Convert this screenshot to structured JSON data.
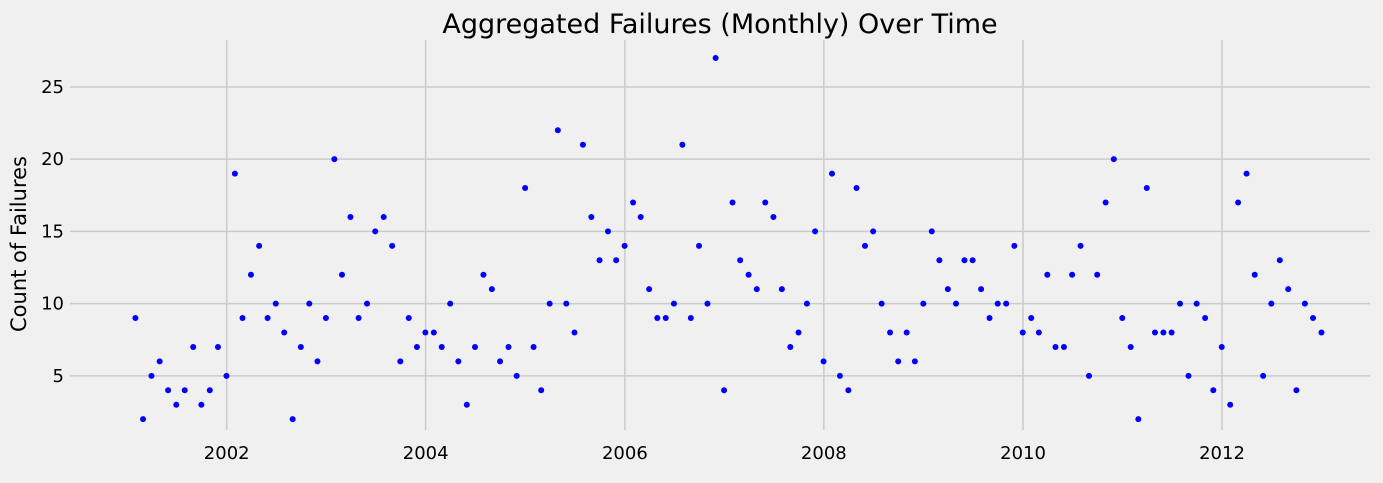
{
  "chart_data": {
    "type": "scatter",
    "title": "Aggregated Failures (Monthly) Over Time",
    "xlabel": "",
    "ylabel": "Count of Failures",
    "marker_color": "#0000ff",
    "background_color": "#f0f0f0",
    "grid_color": "#cbcbcb",
    "grid": true,
    "x_tick_labels": [
      "2002",
      "2004",
      "2006",
      "2008",
      "2010",
      "2012"
    ],
    "y_tick_labels": [
      "5",
      "10",
      "15",
      "20",
      "25"
    ],
    "xlim": [
      "2000-06-05",
      "2013-06-27"
    ],
    "ylim": [
      1.25,
      28.25
    ],
    "series": [
      {
        "x": [
          "2001-01-31",
          "2001-02-28",
          "2001-03-31",
          "2001-04-30",
          "2001-05-31",
          "2001-06-30",
          "2001-07-31",
          "2001-08-31",
          "2001-09-30",
          "2001-10-31",
          "2001-11-30",
          "2001-12-31",
          "2002-01-31",
          "2002-02-28",
          "2002-03-31",
          "2002-04-30",
          "2002-05-31",
          "2002-06-30",
          "2002-07-31",
          "2002-08-31",
          "2002-09-30",
          "2002-10-31",
          "2002-11-30",
          "2002-12-31",
          "2003-01-31",
          "2003-02-28",
          "2003-03-31",
          "2003-04-30",
          "2003-05-31",
          "2003-06-30",
          "2003-07-31",
          "2003-08-31",
          "2003-09-30",
          "2003-10-31",
          "2003-11-30",
          "2003-12-31",
          "2004-01-31",
          "2004-02-29",
          "2004-03-31",
          "2004-04-30",
          "2004-05-31",
          "2004-06-30",
          "2004-07-31",
          "2004-08-31",
          "2004-09-30",
          "2004-10-31",
          "2004-11-30",
          "2004-12-31",
          "2005-01-31",
          "2005-02-28",
          "2005-03-31",
          "2005-04-30",
          "2005-05-31",
          "2005-06-30",
          "2005-07-31",
          "2005-08-31",
          "2005-09-30",
          "2005-10-31",
          "2005-11-30",
          "2005-12-31",
          "2006-01-31",
          "2006-02-28",
          "2006-03-31",
          "2006-04-30",
          "2006-05-31",
          "2006-06-30",
          "2006-07-31",
          "2006-08-31",
          "2006-09-30",
          "2006-10-31",
          "2006-11-30",
          "2006-12-31",
          "2007-01-31",
          "2007-02-28",
          "2007-03-31",
          "2007-04-30",
          "2007-05-31",
          "2007-06-30",
          "2007-07-31",
          "2007-08-31",
          "2007-09-30",
          "2007-10-31",
          "2007-11-30",
          "2007-12-31",
          "2008-01-31",
          "2008-02-29",
          "2008-03-31",
          "2008-04-30",
          "2008-05-31",
          "2008-06-30",
          "2008-07-31",
          "2008-08-31",
          "2008-09-30",
          "2008-10-31",
          "2008-11-30",
          "2008-12-31",
          "2009-01-31",
          "2009-02-28",
          "2009-03-31",
          "2009-04-30",
          "2009-05-31",
          "2009-06-30",
          "2009-07-31",
          "2009-08-31",
          "2009-09-30",
          "2009-10-31",
          "2009-11-30",
          "2009-12-31",
          "2010-01-31",
          "2010-02-28",
          "2010-03-31",
          "2010-04-30",
          "2010-05-31",
          "2010-06-30",
          "2010-07-31",
          "2010-08-31",
          "2010-09-30",
          "2010-10-31",
          "2010-11-30",
          "2010-12-31",
          "2011-01-31",
          "2011-02-28",
          "2011-03-31",
          "2011-04-30",
          "2011-05-31",
          "2011-06-30",
          "2011-07-31",
          "2011-08-31",
          "2011-09-30",
          "2011-10-31",
          "2011-11-30",
          "2011-12-31",
          "2012-01-31",
          "2012-02-29",
          "2012-03-31",
          "2012-04-30",
          "2012-05-31",
          "2012-06-30",
          "2012-07-31",
          "2012-08-31",
          "2012-09-30",
          "2012-10-31",
          "2012-11-30",
          "2012-12-31"
        ],
        "y": [
          9,
          2,
          5,
          6,
          4,
          3,
          4,
          7,
          3,
          4,
          7,
          5,
          19,
          9,
          12,
          14,
          9,
          10,
          8,
          2,
          7,
          10,
          6,
          9,
          20,
          12,
          16,
          9,
          10,
          15,
          16,
          14,
          6,
          9,
          7,
          8,
          8,
          7,
          10,
          6,
          3,
          7,
          12,
          11,
          6,
          7,
          5,
          18,
          7,
          4,
          10,
          22,
          10,
          8,
          21,
          16,
          13,
          15,
          13,
          14,
          17,
          16,
          11,
          9,
          9,
          10,
          21,
          9,
          14,
          10,
          27,
          4,
          17,
          13,
          12,
          11,
          17,
          16,
          11,
          7,
          8,
          10,
          15,
          6,
          19,
          5,
          4,
          18,
          14,
          15,
          10,
          8,
          6,
          8,
          6,
          10,
          15,
          13,
          11,
          10,
          13,
          13,
          11,
          9,
          10,
          10,
          14,
          8,
          9,
          8,
          12,
          7,
          7,
          12,
          14,
          5,
          12,
          17,
          20,
          9,
          7,
          2,
          18,
          8,
          8,
          8,
          10,
          5,
          10,
          9,
          4,
          7,
          3,
          17,
          19,
          12,
          5,
          10,
          13,
          11,
          4,
          10,
          9,
          8
        ]
      }
    ]
  }
}
